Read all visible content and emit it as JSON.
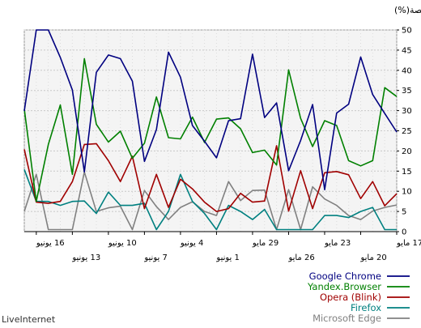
{
  "brand": "LiveInternet",
  "chart_data": {
    "type": "line",
    "ylabel": "الحصة(%)",
    "ylim": [
      0,
      50
    ],
    "yticks": [
      0,
      5,
      10,
      15,
      20,
      25,
      30,
      35,
      40,
      45,
      50
    ],
    "grid": true,
    "legend_position": "bottom-right",
    "x_labels_upper": [
      "17 مايو",
      "23 مايو",
      "29 مايو",
      "4 يونيو",
      "10 يونيو",
      "16 يونيو"
    ],
    "x_labels_lower": [
      "20 مايو",
      "26 مايو",
      "1 يونيو",
      "7 يونيو",
      "13 يونيو"
    ],
    "series": [
      {
        "name": "Google Chrome",
        "color": "#000080",
        "values": [
          24.7,
          29.3,
          34.0,
          43.3,
          31.6,
          29.4,
          10.4,
          31.5,
          22.6,
          15.1,
          31.9,
          28.3,
          44.0,
          28.0,
          27.5,
          18.3,
          22.4,
          26.3,
          38.3,
          44.5,
          25.3,
          17.4,
          37.3,
          42.9,
          43.8,
          39.5,
          14.8,
          35.1,
          43.2,
          50.0,
          50.0,
          29.9
        ]
      },
      {
        "name": "Yandex.Browser",
        "color": "#008000",
        "values": [
          33.5,
          35.7,
          17.6,
          16.3,
          17.6,
          26.3,
          27.5,
          21.1,
          28.1,
          40.1,
          16.5,
          20.2,
          19.6,
          25.5,
          28.2,
          27.9,
          22.1,
          28.4,
          23.0,
          23.3,
          33.4,
          21.9,
          18.2,
          24.9,
          22.2,
          26.6,
          42.9,
          14.2,
          31.4,
          21.6,
          7.5,
          30.4
        ]
      },
      {
        "name": "Opera (Blink)",
        "color": "#a00000",
        "values": [
          9.4,
          6.4,
          12.4,
          8.2,
          14.1,
          14.9,
          14.6,
          5.7,
          15.1,
          5.1,
          21.3,
          7.6,
          7.3,
          9.5,
          5.7,
          5.0,
          7.3,
          10.6,
          13.0,
          6.0,
          14.2,
          5.7,
          18.7,
          12.4,
          17.6,
          21.8,
          21.6,
          12.4,
          7.5,
          7.0,
          7.3,
          20.4
        ]
      },
      {
        "name": "Firefox",
        "color": "#008080",
        "values": [
          0.5,
          0.5,
          6.0,
          5.0,
          3.5,
          4.0,
          4.0,
          0.5,
          0.5,
          0.5,
          0.5,
          5.5,
          3.0,
          5.0,
          6.5,
          0.5,
          4.5,
          7.5,
          14.2,
          5.0,
          0.5,
          7.0,
          6.5,
          6.5,
          9.8,
          4.5,
          7.6,
          7.5,
          6.5,
          7.5,
          7.5,
          15.4
        ]
      },
      {
        "name": "Microsoft Edge",
        "color": "#808080",
        "values": [
          6.6,
          6.0,
          5.1,
          3.0,
          4.0,
          6.5,
          8.1,
          11.1,
          0.5,
          10.4,
          0.5,
          10.3,
          10.2,
          7.7,
          12.4,
          4.0,
          5.0,
          7.4,
          6.0,
          3.0,
          6.2,
          10.2,
          0.5,
          6.3,
          5.9,
          5.0,
          14.8,
          0.5,
          0.5,
          0.5,
          14.2,
          5.0
        ]
      }
    ]
  }
}
